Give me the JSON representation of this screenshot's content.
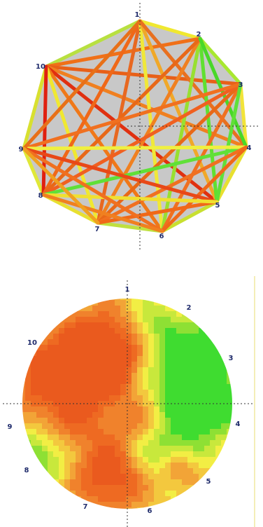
{
  "network_diagram": {
    "node_labels": [
      "1",
      "2",
      "3",
      "4",
      "5",
      "6",
      "7",
      "8",
      "9",
      "10"
    ],
    "background_color": "#c8c8c8",
    "edges": [
      {
        "from": "1",
        "to": "2",
        "color": "#f0e830"
      },
      {
        "from": "2",
        "to": "3",
        "color": "#a8e830"
      },
      {
        "from": "3",
        "to": "4",
        "color": "#f2e43a"
      },
      {
        "from": "4",
        "to": "5",
        "color": "#e8e030"
      },
      {
        "from": "5",
        "to": "6",
        "color": "#c8e030"
      },
      {
        "from": "6",
        "to": "7",
        "color": "#c0e040"
      },
      {
        "from": "7",
        "to": "8",
        "color": "#e8e030"
      },
      {
        "from": "8",
        "to": "9",
        "color": "#e0e838"
      },
      {
        "from": "9",
        "to": "10",
        "color": "#d8e030"
      },
      {
        "from": "10",
        "to": "1",
        "color": "#b8e040"
      },
      {
        "from": "10",
        "to": "2",
        "color": "#f07018"
      },
      {
        "from": "10",
        "to": "3",
        "color": "#e86018"
      },
      {
        "from": "10",
        "to": "4",
        "color": "#f08020"
      },
      {
        "from": "10",
        "to": "5",
        "color": "#e03010"
      },
      {
        "from": "10",
        "to": "6",
        "color": "#f07818"
      },
      {
        "from": "10",
        "to": "7",
        "color": "#f0e830"
      },
      {
        "from": "10",
        "to": "8",
        "color": "#e02010"
      },
      {
        "from": "1",
        "to": "8",
        "color": "#f06818"
      },
      {
        "from": "1",
        "to": "7",
        "color": "#e86820"
      },
      {
        "from": "1",
        "to": "6",
        "color": "#f0e838"
      },
      {
        "from": "1",
        "to": "5",
        "color": "#f0a828"
      },
      {
        "from": "1",
        "to": "4",
        "color": "#e87020"
      },
      {
        "from": "2",
        "to": "5",
        "color": "#60e030"
      },
      {
        "from": "2",
        "to": "6",
        "color": "#98e030"
      },
      {
        "from": "2",
        "to": "7",
        "color": "#f08020"
      },
      {
        "from": "2",
        "to": "8",
        "color": "#e86818"
      },
      {
        "from": "2",
        "to": "4",
        "color": "#48d828"
      },
      {
        "from": "3",
        "to": "6",
        "color": "#f07020"
      },
      {
        "from": "3",
        "to": "7",
        "color": "#e86818"
      },
      {
        "from": "3",
        "to": "8",
        "color": "#f06020"
      },
      {
        "from": "3",
        "to": "9",
        "color": "#f07020"
      },
      {
        "from": "3",
        "to": "5",
        "color": "#60e038"
      },
      {
        "from": "4",
        "to": "8",
        "color": "#60e038"
      },
      {
        "from": "4",
        "to": "9",
        "color": "#f0f040"
      },
      {
        "from": "4",
        "to": "7",
        "color": "#f07020"
      },
      {
        "from": "4",
        "to": "6",
        "color": "#f06818"
      },
      {
        "from": "5",
        "to": "7",
        "color": "#f06818"
      },
      {
        "from": "5",
        "to": "9",
        "color": "#e84818"
      },
      {
        "from": "5",
        "to": "8",
        "color": "#f0e030"
      },
      {
        "from": "6",
        "to": "9",
        "color": "#f07020"
      },
      {
        "from": "9",
        "to": "1",
        "color": "#e87018"
      },
      {
        "from": "8",
        "to": "6",
        "color": "#f08020"
      },
      {
        "from": "7",
        "to": "9",
        "color": "#f0a020"
      }
    ]
  },
  "heatmap": {
    "node_labels": [
      "1",
      "2",
      "3",
      "4",
      "5",
      "6",
      "7",
      "8",
      "9",
      "10"
    ],
    "palette": [
      "#3fdc30",
      "#8ee034",
      "#c8e83c",
      "#f2ee44",
      "#f3c83e",
      "#f2a437",
      "#f0822c",
      "#ee6a22",
      "#ea5a1e"
    ]
  }
}
